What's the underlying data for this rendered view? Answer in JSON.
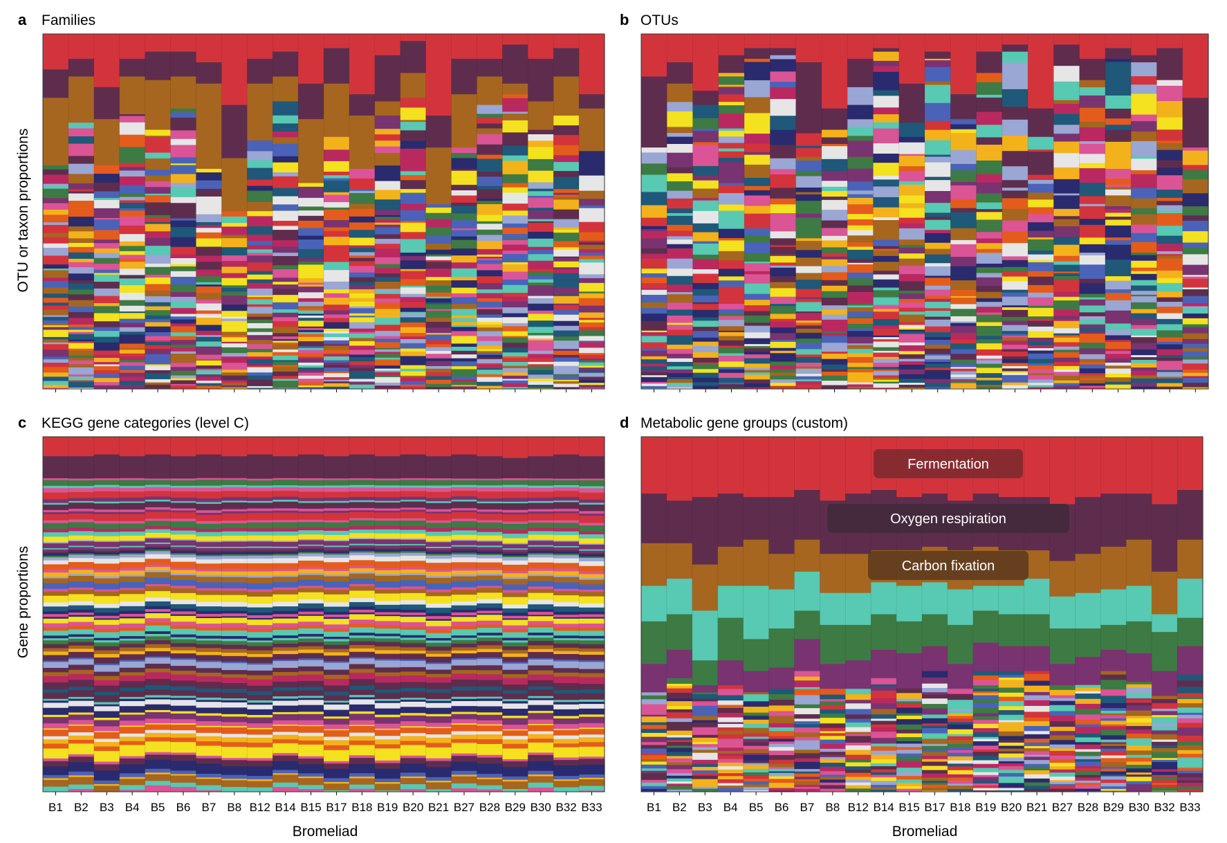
{
  "palette": [
    "#d3343c",
    "#5e2d4e",
    "#a6661f",
    "#58c9b2",
    "#3e7a44",
    "#793371",
    "#e45c1b",
    "#f3b21b",
    "#f4e11f",
    "#1f5878",
    "#db5496",
    "#9aa6d3",
    "#2a2a6e",
    "#b92960",
    "#e6e6e6",
    "#4a63b8"
  ],
  "chart_data": [
    {
      "id": "a",
      "type": "bar",
      "stacked": true,
      "normalized": true,
      "letter": "a",
      "title": "Families",
      "ylabel": "OTU or taxon proportions",
      "xlabel": "",
      "categories": [
        "B1",
        "B2",
        "B3",
        "B4",
        "B5",
        "B6",
        "B7",
        "B8",
        "B12",
        "B14",
        "B15",
        "B17",
        "B18",
        "B19",
        "B20",
        "B21",
        "B27",
        "B28",
        "B29",
        "B30",
        "B32",
        "B33"
      ],
      "show_tick_labels": false,
      "ylim": [
        0,
        1
      ],
      "top_series": [
        {
          "name": "",
          "color": "#d3343c",
          "values": [
            0.1,
            0.07,
            0.15,
            0.07,
            0.05,
            0.05,
            0.08,
            0.2,
            0.07,
            0.05,
            0.14,
            0.04,
            0.17,
            0.06,
            0.02,
            0.23,
            0.07,
            0.07,
            0.03,
            0.07,
            0.04,
            0.17
          ]
        },
        {
          "name": "",
          "color": "#5e2d4e",
          "values": [
            0.08,
            0.05,
            0.09,
            0.05,
            0.08,
            0.07,
            0.06,
            0.15,
            0.07,
            0.07,
            0.1,
            0.1,
            0.06,
            0.13,
            0.09,
            0.09,
            0.1,
            0.05,
            0.11,
            0.12,
            0.08,
            0.04
          ]
        },
        {
          "name": "",
          "color": "#a6661f",
          "values": [
            0.19,
            0.13,
            0.13,
            0.08,
            0.14,
            0.09,
            0.24,
            0.15,
            0.16,
            0.07,
            0.18,
            0.15,
            0.15,
            0.04,
            0.07,
            0.16,
            0.15,
            0.08,
            0.03,
            0.08,
            0.11,
            0.12
          ]
        }
      ],
      "body_seed": 11,
      "body_band_range": [
        0.004,
        0.05
      ]
    },
    {
      "id": "b",
      "type": "bar",
      "stacked": true,
      "normalized": true,
      "letter": "b",
      "title": "OTUs",
      "ylabel": "",
      "xlabel": "",
      "categories": [
        "B1",
        "B2",
        "B3",
        "B4",
        "B5",
        "B6",
        "B7",
        "B8",
        "B12",
        "B14",
        "B15",
        "B17",
        "B18",
        "B19",
        "B20",
        "B21",
        "B27",
        "B28",
        "B29",
        "B30",
        "B32",
        "B33"
      ],
      "show_tick_labels": false,
      "ylim": [
        0,
        1
      ],
      "top_series": [
        {
          "name": "",
          "color": "#d3343c",
          "values": [
            0.12,
            0.08,
            0.16,
            0.06,
            0.04,
            0.04,
            0.08,
            0.21,
            0.07,
            0.04,
            0.14,
            0.05,
            0.17,
            0.05,
            0.03,
            0.21,
            0.03,
            0.07,
            0.04,
            0.06,
            0.04,
            0.18
          ]
        },
        {
          "name": "",
          "color": "#5e2d4e",
          "values": [
            0.2,
            0.06,
            0.04,
            0.05,
            0.03,
            0.02,
            0.2,
            0.06,
            0.08,
            0.01,
            0.11,
            0.02,
            0.07,
            0.06,
            0.02,
            0.08,
            0.06,
            0.06,
            0.03,
            0.02,
            0.09,
            0.14
          ]
        }
      ],
      "body_seed": 29,
      "body_band_range": [
        0.004,
        0.06
      ]
    },
    {
      "id": "c",
      "type": "bar",
      "stacked": true,
      "normalized": true,
      "letter": "c",
      "title": "KEGG gene categories (level C)",
      "ylabel": "Gene proportions",
      "xlabel": "Bromeliad",
      "categories": [
        "B1",
        "B2",
        "B3",
        "B4",
        "B5",
        "B6",
        "B7",
        "B8",
        "B12",
        "B14",
        "B15",
        "B17",
        "B18",
        "B19",
        "B20",
        "B21",
        "B27",
        "B28",
        "B29",
        "B30",
        "B32",
        "B33"
      ],
      "show_tick_labels": true,
      "ylim": [
        0,
        1
      ],
      "top_series": [
        {
          "name": "",
          "color": "#d3343c",
          "values": [
            0.055,
            0.055,
            0.05,
            0.055,
            0.05,
            0.055,
            0.05,
            0.055,
            0.05,
            0.055,
            0.05,
            0.055,
            0.05,
            0.055,
            0.05,
            0.055,
            0.05,
            0.055,
            0.06,
            0.055,
            0.05,
            0.055
          ]
        },
        {
          "name": "",
          "color": "#5e2d4e",
          "values": [
            0.055,
            0.055,
            0.06,
            0.055,
            0.06,
            0.055,
            0.06,
            0.055,
            0.06,
            0.055,
            0.06,
            0.055,
            0.06,
            0.055,
            0.06,
            0.055,
            0.06,
            0.055,
            0.05,
            0.055,
            0.06,
            0.055
          ]
        }
      ],
      "body_seed": 53,
      "body_band_range": [
        0.003,
        0.02
      ],
      "body_uniform": true
    },
    {
      "id": "d",
      "type": "bar",
      "stacked": true,
      "normalized": true,
      "letter": "d",
      "title": "Metabolic gene groups (custom)",
      "ylabel": "",
      "xlabel": "Bromeliad",
      "categories": [
        "B1",
        "B2",
        "B3",
        "B4",
        "B5",
        "B6",
        "B7",
        "B8",
        "B12",
        "B14",
        "B15",
        "B17",
        "B18",
        "B19",
        "B20",
        "B21",
        "B27",
        "B28",
        "B29",
        "B30",
        "B32",
        "B33"
      ],
      "show_tick_labels": true,
      "ylim": [
        0,
        1
      ],
      "top_series": [
        {
          "name": "Fermentation",
          "color": "#d3343c",
          "values": [
            0.16,
            0.18,
            0.17,
            0.16,
            0.17,
            0.17,
            0.15,
            0.18,
            0.16,
            0.15,
            0.17,
            0.16,
            0.18,
            0.16,
            0.17,
            0.17,
            0.19,
            0.17,
            0.16,
            0.16,
            0.19,
            0.15
          ]
        },
        {
          "name": "Oxygen respiration",
          "color": "#5e2d4e",
          "values": [
            0.14,
            0.12,
            0.19,
            0.15,
            0.12,
            0.16,
            0.14,
            0.15,
            0.17,
            0.17,
            0.15,
            0.15,
            0.14,
            0.15,
            0.15,
            0.15,
            0.16,
            0.16,
            0.15,
            0.13,
            0.19,
            0.14
          ]
        },
        {
          "name": "Carbon fixation",
          "color": "#a6661f",
          "values": [
            0.12,
            0.1,
            0.13,
            0.11,
            0.13,
            0.1,
            0.09,
            0.11,
            0.11,
            0.09,
            0.1,
            0.1,
            0.11,
            0.11,
            0.1,
            0.08,
            0.1,
            0.11,
            0.12,
            0.13,
            0.12,
            0.11
          ]
        },
        {
          "name": "",
          "color": "#58c9b2",
          "values": [
            0.1,
            0.1,
            0.14,
            0.09,
            0.15,
            0.11,
            0.11,
            0.09,
            0.09,
            0.09,
            0.1,
            0.09,
            0.1,
            0.07,
            0.08,
            0.1,
            0.09,
            0.1,
            0.1,
            0.1,
            0.05,
            0.11
          ]
        },
        {
          "name": "",
          "color": "#3e7a44",
          "values": [
            0.12,
            0.1,
            0.07,
            0.12,
            0.09,
            0.11,
            0.08,
            0.11,
            0.1,
            0.1,
            0.09,
            0.09,
            0.11,
            0.09,
            0.09,
            0.09,
            0.1,
            0.08,
            0.07,
            0.09,
            0.11,
            0.08
          ]
        },
        {
          "name": "",
          "color": "#793371",
          "values": [
            0.08,
            0.08,
            0.02,
            0.07,
            0.06,
            0.06,
            0.09,
            0.07,
            0.08,
            0.08,
            0.08,
            0.07,
            0.07,
            0.08,
            0.07,
            0.07,
            0.06,
            0.06,
            0.06,
            0.08,
            0.07,
            0.08
          ]
        }
      ],
      "body_seed": 71,
      "body_band_range": [
        0.005,
        0.04
      ],
      "annotations": [
        {
          "label": "Fermentation"
        },
        {
          "label": "Oxygen respiration"
        },
        {
          "label": "Carbon fixation"
        }
      ]
    }
  ]
}
